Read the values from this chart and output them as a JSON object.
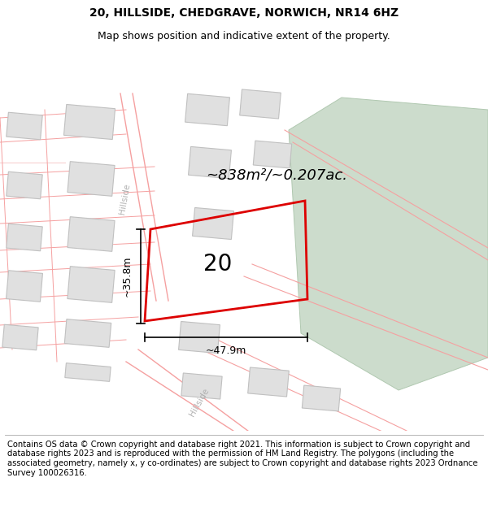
{
  "title": "20, HILLSIDE, CHEDGRAVE, NORWICH, NR14 6HZ",
  "subtitle": "Map shows position and indicative extent of the property.",
  "area_text": "~838m²/~0.207ac.",
  "label_20": "20",
  "dim_width": "~47.9m",
  "dim_height": "~35.8m",
  "footer": "Contains OS data © Crown copyright and database right 2021. This information is subject to Crown copyright and database rights 2023 and is reproduced with the permission of HM Land Registry. The polygons (including the associated geometry, namely x, y co-ordinates) are subject to Crown copyright and database rights 2023 Ordnance Survey 100026316.",
  "map_bg": "#ffffff",
  "highlight_color": "#dd0000",
  "road_color": "#f5a0a0",
  "road_color_light": "#f5c0c0",
  "building_fill": "#e0e0e0",
  "building_stroke": "#c0c0c0",
  "green_fill": "#ccdccc",
  "green_stroke": "#b0c8b0",
  "hillside_label_color": "#b0b0b0",
  "title_fontsize": 10,
  "subtitle_fontsize": 9,
  "area_fontsize": 13,
  "label_fontsize": 20,
  "dim_fontsize": 9,
  "footer_fontsize": 7.2,
  "road_label_fontsize": 7.5
}
